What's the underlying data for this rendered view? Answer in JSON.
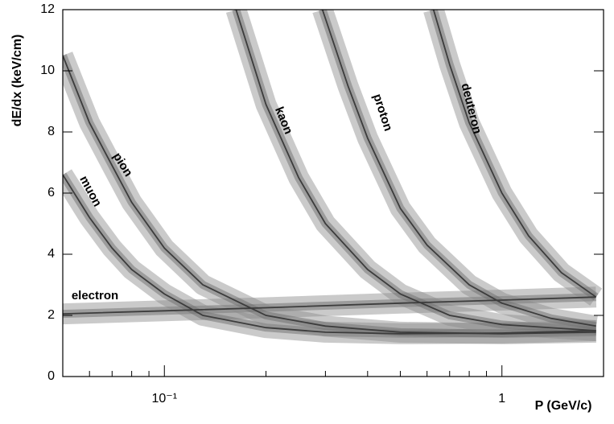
{
  "chart_data": {
    "type": "line",
    "xlabel": "P (GeV/c)",
    "ylabel": "dE/dx (keV/cm)",
    "xscale": "log",
    "xlim": [
      0.05,
      2
    ],
    "ylim": [
      0,
      12
    ],
    "xticks": [
      {
        "value": 0.1,
        "label": "10⁻¹"
      },
      1
    ],
    "yticks": [
      0,
      2,
      4,
      6,
      8,
      10,
      12
    ],
    "series": [
      {
        "name": "electron",
        "color": "#3c3c3c",
        "x": [
          0.05,
          0.1,
          0.2,
          0.5,
          1,
          1.9
        ],
        "values": [
          2.05,
          2.15,
          2.25,
          2.4,
          2.5,
          2.6
        ]
      },
      {
        "name": "muon",
        "color": "#3c3c3c",
        "x": [
          0.05,
          0.06,
          0.07,
          0.08,
          0.1,
          0.13,
          0.2,
          0.3,
          0.5,
          1,
          1.9
        ],
        "values": [
          6.6,
          5.2,
          4.2,
          3.5,
          2.7,
          2.0,
          1.6,
          1.45,
          1.4,
          1.42,
          1.5
        ]
      },
      {
        "name": "pion",
        "color": "#3c3c3c",
        "x": [
          0.05,
          0.06,
          0.07,
          0.08,
          0.1,
          0.13,
          0.2,
          0.3,
          0.5,
          1,
          1.9
        ],
        "values": [
          10.5,
          8.3,
          6.9,
          5.7,
          4.2,
          3.0,
          2.0,
          1.65,
          1.45,
          1.4,
          1.45
        ]
      },
      {
        "name": "kaon",
        "color": "#3c3c3c",
        "x": [
          0.163,
          0.2,
          0.25,
          0.3,
          0.4,
          0.5,
          0.7,
          1,
          1.9
        ],
        "values": [
          12,
          8.9,
          6.5,
          5.0,
          3.5,
          2.7,
          2.0,
          1.7,
          1.5
        ]
      },
      {
        "name": "proton",
        "color": "#3c3c3c",
        "x": [
          0.294,
          0.35,
          0.4,
          0.5,
          0.6,
          0.8,
          1,
          1.4,
          1.9
        ],
        "values": [
          12,
          9.5,
          7.8,
          5.5,
          4.3,
          3.0,
          2.4,
          1.9,
          1.65
        ]
      },
      {
        "name": "deuteron",
        "color": "#3c3c3c",
        "x": [
          0.627,
          0.7,
          0.8,
          1,
          1.2,
          1.5,
          1.9
        ],
        "values": [
          12,
          10.2,
          8.3,
          6.0,
          4.6,
          3.4,
          2.6
        ]
      }
    ]
  }
}
